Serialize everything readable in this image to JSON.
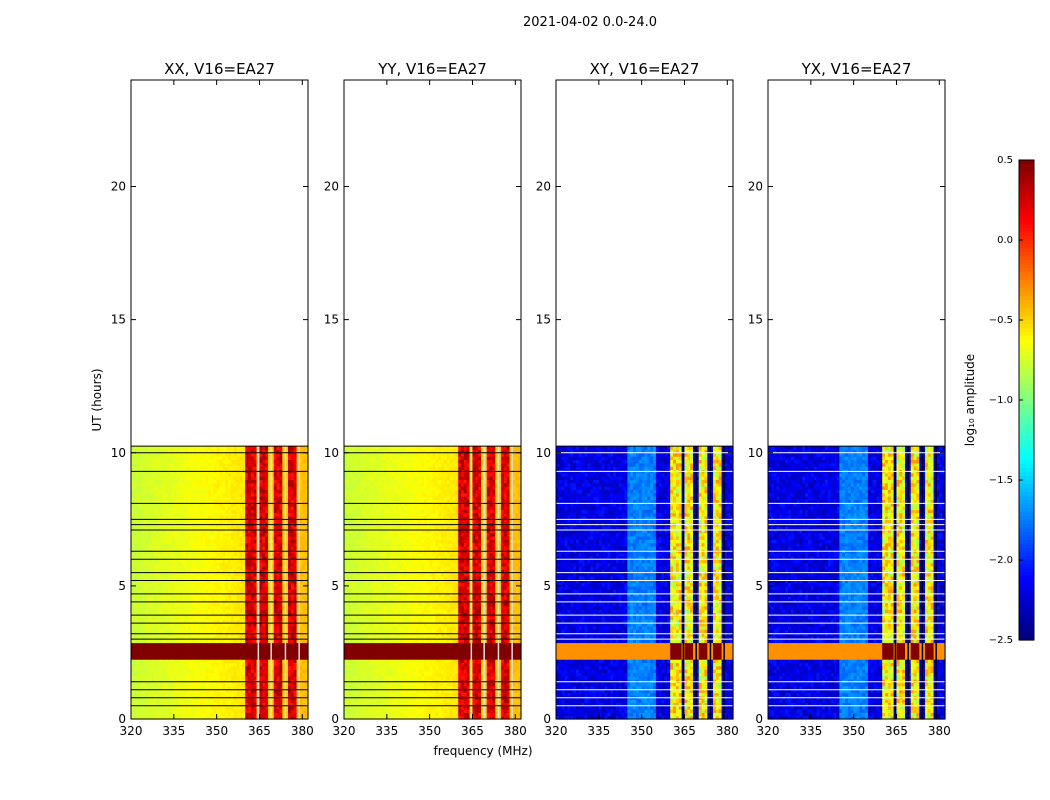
{
  "suptitle": "2021-04-02 0.0-24.0",
  "chart_data": {
    "type": "heatmap",
    "title": "2021-04-02 0.0-24.0",
    "xlabel": "frequency (MHz)",
    "ylabel": "UT (hours)",
    "xlim": [
      320,
      382
    ],
    "ylim": [
      0,
      24
    ],
    "xticks": [
      320,
      335,
      350,
      365,
      380
    ],
    "yticks": [
      0,
      5,
      10,
      15,
      20
    ],
    "data_time_range_hours": [
      0,
      10.25
    ],
    "panels": [
      {
        "title": "XX, V16=EA27",
        "kind": "parallel"
      },
      {
        "title": "YY, V16=EA27",
        "kind": "parallel"
      },
      {
        "title": "XY, V16=EA27",
        "kind": "cross"
      },
      {
        "title": "YX, V16=EA27",
        "kind": "cross"
      }
    ],
    "colorbar": {
      "label": "log₁₀ amplitude",
      "colormap": "jet",
      "range": [
        -2.5,
        0.5
      ],
      "ticks": [
        "0.5",
        "0.0",
        "−0.5",
        "−1.0",
        "−1.5",
        "−2.0",
        "−2.5"
      ]
    },
    "features": {
      "saturated_band_hours": [
        2.3,
        2.85
      ],
      "rfi_band_mhz": [
        360,
        381
      ],
      "flagged_rows_hours": [
        0.5,
        0.8,
        1.1,
        1.4,
        3.0,
        3.2,
        3.6,
        3.9,
        4.4,
        4.7,
        5.2,
        5.5,
        6.0,
        6.3,
        7.1,
        7.3,
        7.5,
        8.1,
        9.3,
        10.0
      ]
    }
  }
}
